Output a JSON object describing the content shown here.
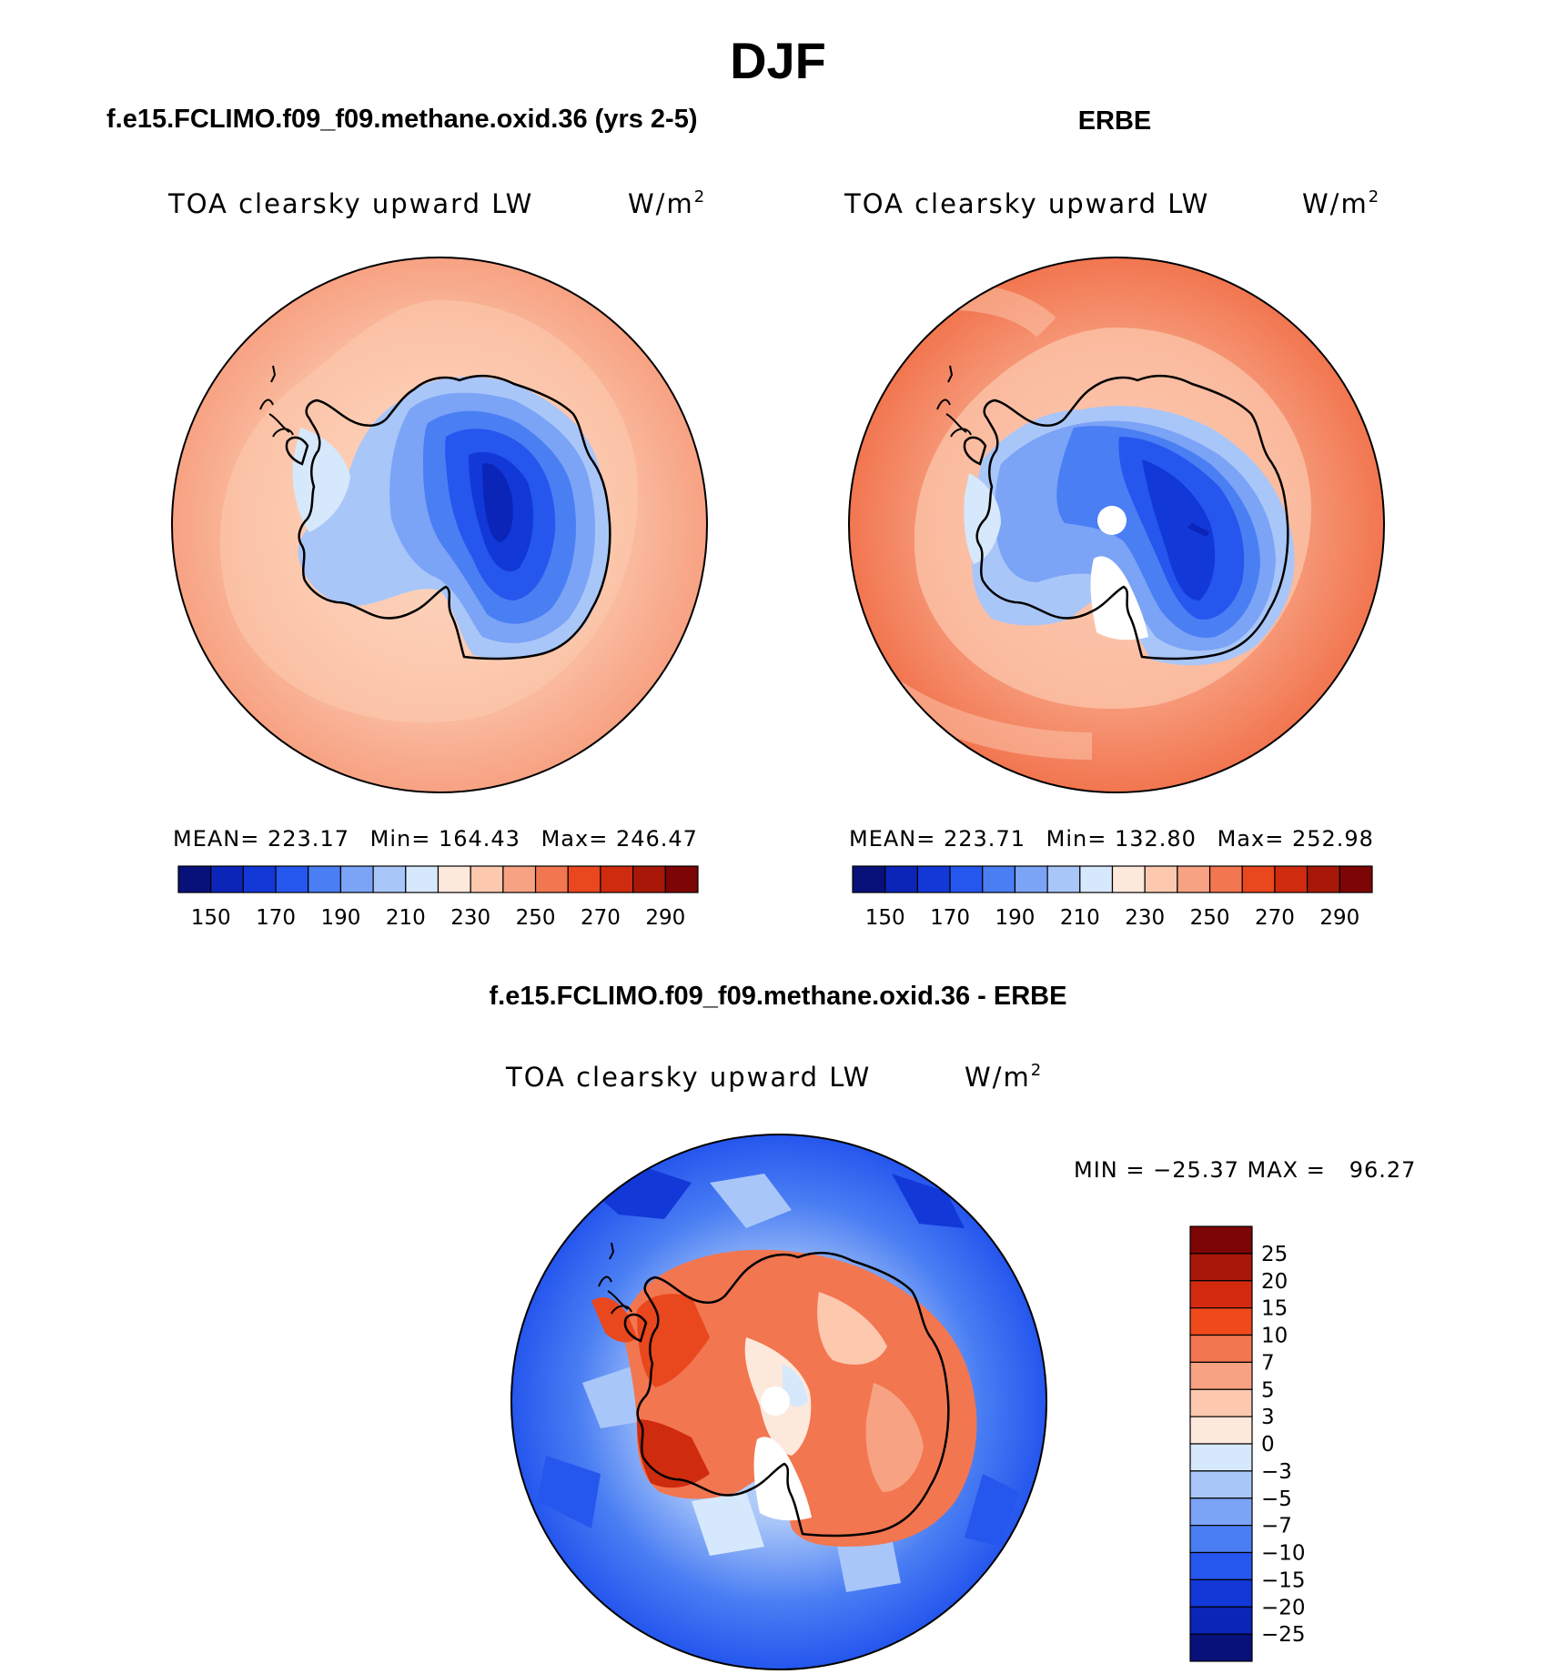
{
  "title": "DJF",
  "panels": [
    {
      "id": "model",
      "header": "f.e15.FCLIMO.f09_f09.methane.oxid.36 (yrs 2-5)",
      "variable": "TOA clearsky upward LW",
      "units_base": "W/m",
      "units_exp": "2",
      "stats": {
        "mean_label": "MEAN=",
        "mean": "223.17",
        "min_label": "Min=",
        "min": "164.43",
        "max_label": "Max=",
        "max": "246.47"
      }
    },
    {
      "id": "obs",
      "header": "ERBE",
      "variable": "TOA clearsky upward LW",
      "units_base": "W/m",
      "units_exp": "2",
      "stats": {
        "mean_label": "MEAN=",
        "mean": "223.71",
        "min_label": "Min=",
        "min": "132.80",
        "max_label": "Max=",
        "max": "252.98"
      }
    },
    {
      "id": "diff",
      "header": "f.e15.FCLIMO.f09_f09.methane.oxid.36 - ERBE",
      "variable": "TOA clearsky upward LW",
      "units_base": "W/m",
      "units_exp": "2",
      "stats_line": "MIN = −25.37 MAX =   96.27"
    }
  ],
  "colorbar_abs": {
    "colors": [
      "#08107a",
      "#0a25b8",
      "#1238d8",
      "#2556ee",
      "#4a7ef3",
      "#7ba3f6",
      "#a9c6f9",
      "#d6e8fb",
      "#fde9dc",
      "#fcc9af",
      "#f7a283",
      "#f27650",
      "#e9471d",
      "#cf2b0e",
      "#a81808",
      "#7d0505"
    ],
    "ticks": [
      "150",
      "170",
      "190",
      "210",
      "230",
      "250",
      "270",
      "290"
    ]
  },
  "colorbar_diff": {
    "colors": [
      "#7d0505",
      "#a81808",
      "#d42b10",
      "#f04a1c",
      "#f27650",
      "#f7a283",
      "#fcc9af",
      "#fde9dc",
      "#d6e8fb",
      "#a9c6f9",
      "#7ba3f6",
      "#4a7ef3",
      "#2556ee",
      "#1238d8",
      "#0a25b8",
      "#08107a"
    ],
    "ticks": [
      "25",
      "20",
      "15",
      "10",
      "7",
      "5",
      "3",
      "0",
      "−3",
      "−5",
      "−7",
      "−10",
      "−15",
      "−20",
      "−25"
    ]
  }
}
